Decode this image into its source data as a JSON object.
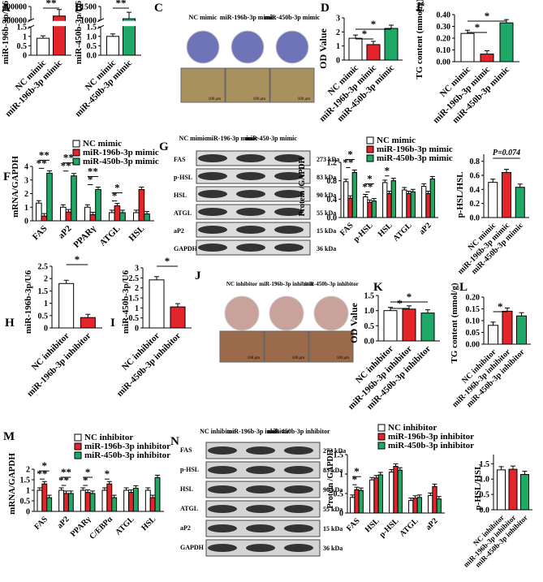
{
  "colors": {
    "nc": "#ffffff",
    "red": "#e3242b",
    "green": "#1fa866",
    "stroke": "#000000",
    "dish_mimic": "#6f74b8",
    "dish_inhib": "#c9a29b"
  },
  "series_names": {
    "mimic": [
      "NC mimic",
      "miR-196b-3p mimic",
      "miR-450b-3p mimic"
    ],
    "inhibitor": [
      "NC inhibitor",
      "miR-196b-3p inhibitor",
      "miR-450b-3p inhibitor"
    ]
  },
  "chart_data": [
    {
      "id": "A",
      "panel_label": "A",
      "type": "bar",
      "ylabel": "miR-196b-3p/U6",
      "categories": [
        "NC mimic",
        "miR-196b-3p mimic"
      ],
      "values": [
        0.9,
        330000
      ],
      "axis_break": true,
      "ylim_lower": [
        0,
        1.5
      ],
      "ylim_upper": [
        300000,
        400000
      ],
      "yticks_lower": [
        "0",
        "0.5",
        "1",
        "1.5"
      ],
      "yticks_upper": [
        "300000",
        "400000"
      ],
      "sig": [
        "**"
      ]
    },
    {
      "id": "B",
      "panel_label": "B",
      "type": "bar",
      "ylabel": "miR-450b-3p/U6",
      "categories": [
        "NC mimic",
        "miR-450b-3p mimic"
      ],
      "values": [
        1.0,
        1050
      ],
      "axis_break": true,
      "ylim_lower": [
        0,
        1.5
      ],
      "ylim_upper": [
        1000,
        1500
      ],
      "yticks_lower": [
        "0.0",
        "0.5",
        "1.0",
        "1.5"
      ],
      "yticks_upper": [
        "1000",
        "1500"
      ],
      "sig": [
        "**"
      ]
    },
    {
      "id": "D",
      "panel_label": "D",
      "type": "bar",
      "ylabel": "OD Value",
      "categories": [
        "NC mimic",
        "miR-196b-3p mimic",
        "miR-450b-3p mimic"
      ],
      "values": [
        1.55,
        1.1,
        2.25
      ],
      "ylim": [
        0,
        3
      ],
      "yticks": [
        "0",
        "1",
        "2",
        "3"
      ],
      "sig": [
        "*",
        "*"
      ]
    },
    {
      "id": "E",
      "panel_label": "E",
      "type": "bar",
      "ylabel": "TG content (mmol/g)",
      "categories": [
        "NC mimic",
        "miR-196b-3p mimic",
        "miR-450b-3p mimic"
      ],
      "values": [
        0.24,
        0.065,
        0.33
      ],
      "ylim": [
        0,
        0.4
      ],
      "yticks": [
        "0.00",
        "0.10",
        "0.20",
        "0.30",
        "0.40"
      ],
      "sig": [
        "*",
        "*"
      ]
    },
    {
      "id": "F",
      "panel_label": "F",
      "type": "bar",
      "ylabel": "mRNA/GAPDH",
      "categories": [
        "FAS",
        "aP2",
        "PPARγ",
        "ATGL",
        "HSL"
      ],
      "series": [
        {
          "name": "NC mimic",
          "values": [
            1.3,
            1.0,
            1.0,
            0.6,
            0.6
          ]
        },
        {
          "name": "miR-196b-3p mimic",
          "values": [
            0.35,
            0.65,
            0.45,
            1.1,
            2.3
          ]
        },
        {
          "name": "miR-450b-3p mimic",
          "values": [
            3.5,
            3.3,
            2.3,
            0.6,
            0.5
          ]
        }
      ],
      "ylim": [
        0,
        4
      ],
      "yticks": [
        "0",
        "1",
        "2",
        "3",
        "4"
      ],
      "sig": [
        "**",
        "**",
        "**",
        "**",
        "*",
        "**",
        "*",
        "*"
      ]
    },
    {
      "id": "G-quant",
      "type": "bar",
      "ylabel": "Protein /GAPDH",
      "categories": [
        "FAS",
        "p-HSL",
        "HSL",
        "ATGL",
        "aP2"
      ],
      "series": [
        {
          "name": "NC mimic",
          "values": [
            0.78,
            0.45,
            0.76,
            0.6,
            0.68
          ]
        },
        {
          "name": "miR-196b-3p mimic",
          "values": [
            0.42,
            0.33,
            0.52,
            0.52,
            0.52
          ]
        },
        {
          "name": "miR-450b-3p mimic",
          "values": [
            0.98,
            0.36,
            0.8,
            0.56,
            0.84
          ]
        }
      ],
      "ylim": [
        0,
        1.2
      ],
      "yticks": [
        "0.0",
        "0.4",
        "0.8",
        "1.2"
      ],
      "sig": [
        "**",
        "*",
        "**",
        "*",
        "*"
      ]
    },
    {
      "id": "G-ratio",
      "type": "bar",
      "ylabel": "p-HSL/HSL",
      "categories": [
        "NC mimic",
        "miR-196b-3p mimic",
        "miR-450b-3p mimic"
      ],
      "values": [
        0.5,
        0.64,
        0.43
      ],
      "ylim": [
        0,
        0.9
      ],
      "yticks": [
        "0.0",
        "0.2",
        "0.4",
        "0.6",
        "0.8"
      ],
      "annotation": "P=0.074"
    },
    {
      "id": "H",
      "panel_label": "H",
      "type": "bar",
      "ylabel": "miR-196b-3p/U6",
      "categories": [
        "NC inhibitor",
        "miR-196b-3p inhibitor"
      ],
      "values": [
        1.8,
        0.42
      ],
      "ylim": [
        0,
        2.5
      ],
      "yticks": [
        "0",
        "0.5",
        "1",
        "1.5",
        "2",
        "2.5"
      ],
      "sig": [
        "*"
      ]
    },
    {
      "id": "I",
      "panel_label": "I",
      "type": "bar",
      "ylabel": "miR-450b-3p/U6",
      "categories": [
        "NC inhibitor",
        "miR-450b-3p inhibitor"
      ],
      "values": [
        2.4,
        1.05
      ],
      "ylim": [
        0,
        3
      ],
      "yticks": [
        "0",
        "0.5",
        "1",
        "1.5",
        "2",
        "2.5",
        "3"
      ],
      "sig": [
        "*"
      ]
    },
    {
      "id": "K",
      "panel_label": "K",
      "type": "bar",
      "ylabel": "OD Value",
      "categories": [
        "NC inhibitor",
        "miR-196b-3p inhibitor",
        "miR-450b-3p inhibitor"
      ],
      "values": [
        1.0,
        1.05,
        0.92
      ],
      "ylim": [
        0,
        1.5
      ],
      "yticks": [
        "0.0",
        "0.5",
        "1.0",
        "1.5"
      ],
      "sig": [
        "*",
        "*"
      ]
    },
    {
      "id": "L",
      "panel_label": "L",
      "type": "bar",
      "ylabel": "TG content (mmol/g)",
      "categories": [
        "NC inhibitor",
        "miR-196b-3p inhibitor",
        "miR-450b-3p inhibitor"
      ],
      "values": [
        0.08,
        0.14,
        0.12
      ],
      "ylim": [
        0,
        0.2
      ],
      "yticks": [
        "0.00",
        "0.05",
        "0.10",
        "0.15",
        "0.20"
      ],
      "sig": [
        "*"
      ]
    },
    {
      "id": "M",
      "panel_label": "M",
      "type": "bar",
      "ylabel": "mRNA/GAPDH",
      "categories": [
        "FAS",
        "aP2",
        "PPARγ",
        "C/EBPα",
        "ATGL",
        "HSL"
      ],
      "series": [
        {
          "name": "NC inhibitor",
          "values": [
            1.0,
            1.0,
            1.0,
            1.0,
            1.0,
            1.0
          ]
        },
        {
          "name": "miR-196b-3p inhibitor",
          "values": [
            1.3,
            0.85,
            0.9,
            1.3,
            0.9,
            0.65
          ]
        },
        {
          "name": "miR-450b-3p inhibitor",
          "values": [
            0.65,
            0.85,
            0.85,
            0.65,
            1.1,
            1.6
          ]
        }
      ],
      "ylim": [
        0,
        2
      ],
      "yticks": [
        "0",
        "0.5",
        "1",
        "1.5",
        "2"
      ],
      "sig": [
        "**",
        "*",
        "**",
        "**",
        "*",
        "*",
        "*"
      ]
    },
    {
      "id": "N-quant",
      "type": "bar",
      "ylabel": "Protein /GAPDH",
      "categories": [
        "FAS",
        "HSL",
        "p-HSL",
        "ATGL",
        "aP2"
      ],
      "series": [
        {
          "name": "NC inhibitor",
          "values": [
            0.4,
            0.85,
            1.05,
            0.32,
            0.45
          ]
        },
        {
          "name": "miR-196b-3p inhibitor",
          "values": [
            0.6,
            0.9,
            1.2,
            0.38,
            0.68
          ]
        },
        {
          "name": "miR-450b-3p inhibitor",
          "values": [
            0.58,
            0.98,
            1.1,
            0.4,
            0.36
          ]
        }
      ],
      "ylim": [
        0,
        1.5
      ],
      "yticks": [
        "0",
        "0.5",
        "1",
        "1.5"
      ],
      "sig": [
        "*",
        "*"
      ]
    },
    {
      "id": "N-ratio",
      "type": "bar",
      "ylabel": "p-HSL/HSL",
      "categories": [
        "NC inhibitor",
        "miR-196b-3p inhibitor",
        "miR-450b-3p inhibitor"
      ],
      "values": [
        1.3,
        1.32,
        1.15
      ],
      "ylim": [
        0,
        1.8
      ],
      "yticks": [
        "0.0",
        "0.5",
        "1.0",
        "1.5"
      ]
    }
  ],
  "images": {
    "C": {
      "panel_label": "C",
      "headers": [
        "NC mimic",
        "miR-196b-3p mimic",
        "miR-450b-3p mimic"
      ],
      "scale": "100 μm"
    },
    "J": {
      "panel_label": "J",
      "headers": [
        "NC inhibitor",
        "miR-196b-3p inhibitor",
        "miR-450b-3p inhibitor"
      ],
      "scale": "100 μm"
    }
  },
  "blots": {
    "G": {
      "panel_label": "G",
      "headers": [
        "NC mimic",
        "miR-196-3p mimic",
        "miR-450-3p mimic"
      ],
      "rows": [
        {
          "name": "FAS",
          "kda": "273 kDa"
        },
        {
          "name": "p-HSL",
          "kda": "83 kDa"
        },
        {
          "name": "HSL",
          "kda": "90 kDa"
        },
        {
          "name": "ATGL",
          "kda": "55 kDa"
        },
        {
          "name": "aP2",
          "kda": "15 kDa"
        },
        {
          "name": "GAPDH",
          "kda": "36 kDa"
        }
      ]
    },
    "N": {
      "panel_label": "N",
      "headers": [
        "NC inhibitor",
        "miR-196b-3p inhibitor",
        "miR-450b-3p inhibitor"
      ],
      "rows": [
        {
          "name": "FAS",
          "kda": "273 kDa"
        },
        {
          "name": "p-HSL",
          "kda": "83 kDa"
        },
        {
          "name": "HSL",
          "kda": "90 kDa"
        },
        {
          "name": "ATGL",
          "kda": "55 kDa"
        },
        {
          "name": "aP2",
          "kda": "15 kDa"
        },
        {
          "name": "GAPDH",
          "kda": "36 kDa"
        }
      ]
    }
  }
}
